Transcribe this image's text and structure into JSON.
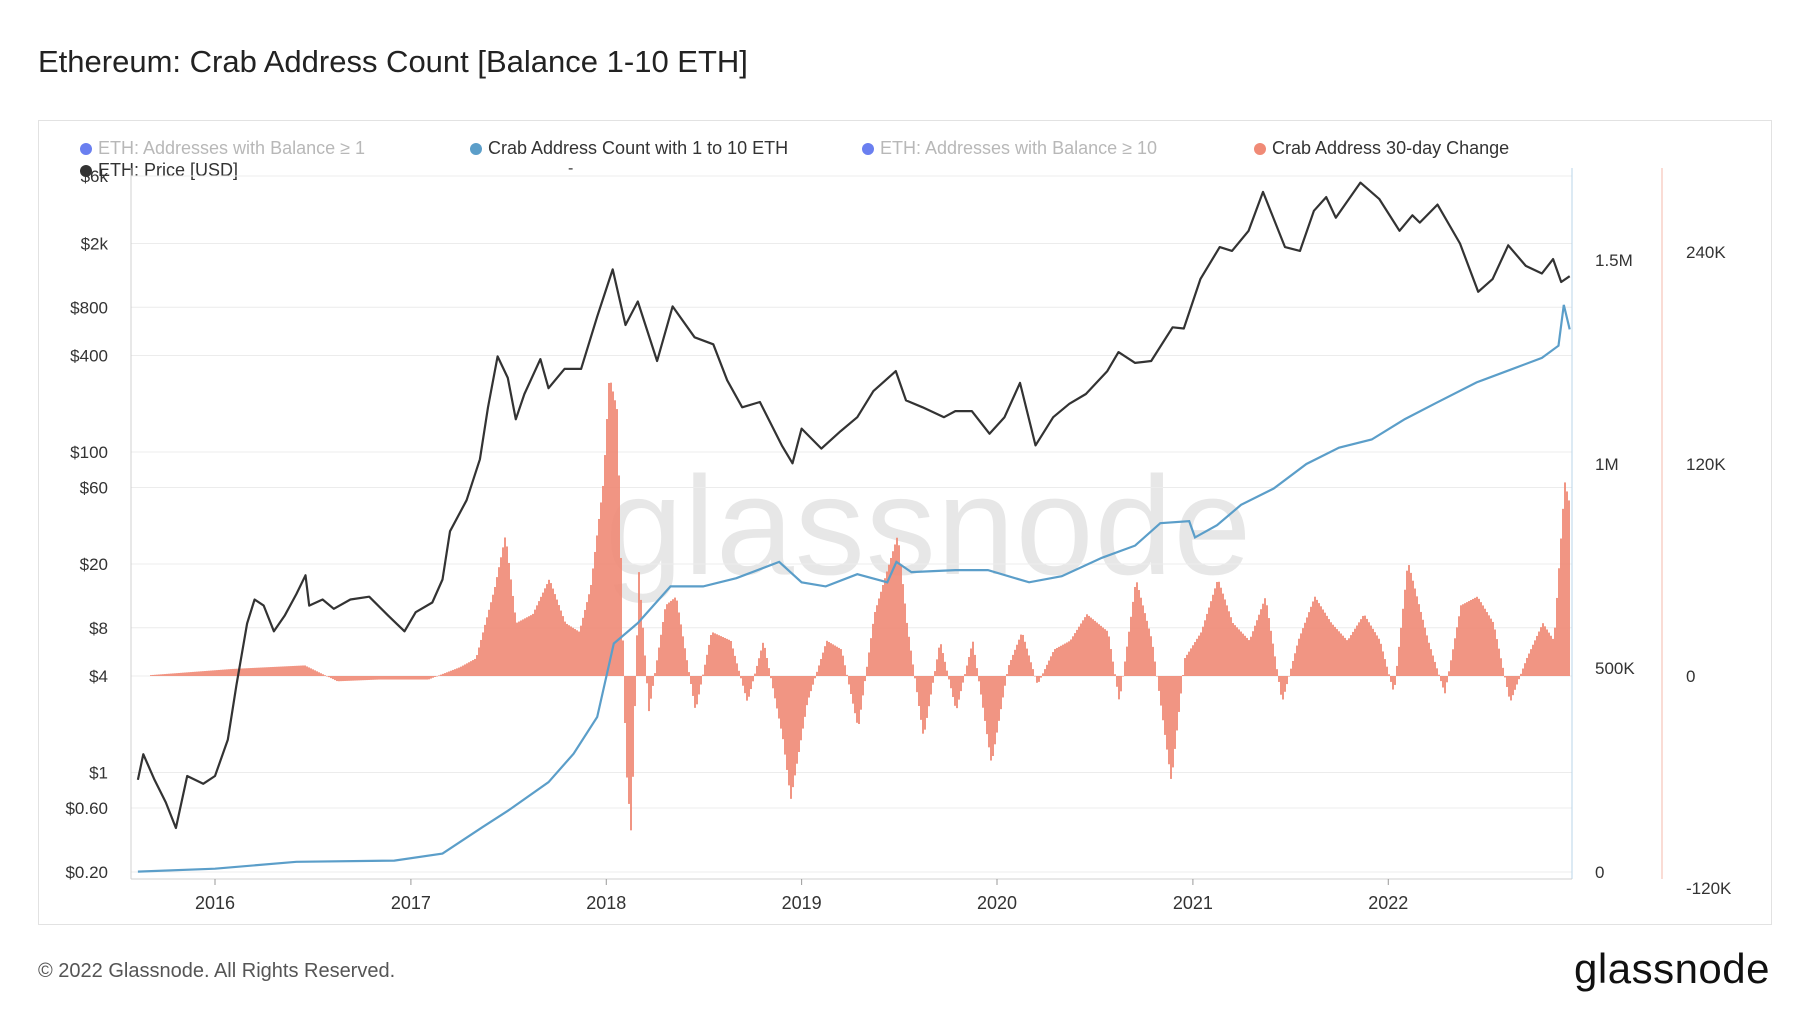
{
  "title": "Ethereum: Crab Address Count [Balance 1-10 ETH]",
  "legend": [
    {
      "label": "ETH: Addresses with Balance ≥ 1",
      "color": "#6a7ff0",
      "active": false
    },
    {
      "label": "Crab Address Count with 1 to 10 ETH",
      "color": "#5b9ec9",
      "active": true
    },
    {
      "label": "ETH: Addresses with Balance ≥ 10",
      "color": "#6a7ff0",
      "active": false
    },
    {
      "label": "Crab Address 30-day Change",
      "color": "#f08a76",
      "active": true
    },
    {
      "label": "ETH: Price [USD]",
      "color": "#333333",
      "active": true
    }
  ],
  "legend_dash": "-",
  "watermark": "glassnode",
  "footer": {
    "copyright": "© 2022 Glassnode. All Rights Reserved.",
    "brand": "glassnode"
  },
  "chart_data": {
    "type": "line",
    "x_ticks": [
      "2016",
      "2017",
      "2018",
      "2019",
      "2020",
      "2021",
      "2022"
    ],
    "price_axis_ticks": [
      "$6k",
      "$2k",
      "$800",
      "$400",
      "$100",
      "$60",
      "$20",
      "$8",
      "$4",
      "$1",
      "$0.60",
      "$0.20"
    ],
    "count_axis_ticks": [
      "1.5M",
      "1M",
      "500K",
      "0"
    ],
    "change_axis_ticks": [
      "240K",
      "120K",
      "0",
      "-120K"
    ],
    "price_scale": "log",
    "grid": true,
    "legend_position": "top",
    "series": [
      {
        "name": "ETH: Price [USD]",
        "axis": "left-log",
        "color": "#333333",
        "points": [
          [
            "2015-08-10",
            0.9
          ],
          [
            "2015-08-20",
            1.3
          ],
          [
            "2015-09-10",
            0.9
          ],
          [
            "2015-10-01",
            0.65
          ],
          [
            "2015-10-20",
            0.45
          ],
          [
            "2015-11-10",
            0.95
          ],
          [
            "2015-12-10",
            0.85
          ],
          [
            "2016-01-01",
            0.95
          ],
          [
            "2016-01-25",
            1.6
          ],
          [
            "2016-02-10",
            3.5
          ],
          [
            "2016-03-01",
            8.5
          ],
          [
            "2016-03-15",
            12
          ],
          [
            "2016-04-01",
            11
          ],
          [
            "2016-04-20",
            7.6
          ],
          [
            "2016-05-10",
            9.5
          ],
          [
            "2016-06-01",
            13
          ],
          [
            "2016-06-18",
            17
          ],
          [
            "2016-06-25",
            11
          ],
          [
            "2016-07-20",
            12
          ],
          [
            "2016-08-10",
            10.5
          ],
          [
            "2016-09-10",
            12
          ],
          [
            "2016-10-15",
            12.5
          ],
          [
            "2016-11-20",
            9.5
          ],
          [
            "2016-12-20",
            7.6
          ],
          [
            "2017-01-10",
            10
          ],
          [
            "2017-02-10",
            11.5
          ],
          [
            "2017-03-01",
            16
          ],
          [
            "2017-03-15",
            32
          ],
          [
            "2017-04-15",
            50
          ],
          [
            "2017-05-10",
            90
          ],
          [
            "2017-05-25",
            190
          ],
          [
            "2017-06-12",
            395
          ],
          [
            "2017-07-01",
            290
          ],
          [
            "2017-07-16",
            160
          ],
          [
            "2017-08-01",
            230
          ],
          [
            "2017-08-31",
            380
          ],
          [
            "2017-09-15",
            250
          ],
          [
            "2017-10-15",
            330
          ],
          [
            "2017-11-15",
            330
          ],
          [
            "2017-12-15",
            700
          ],
          [
            "2018-01-13",
            1380
          ],
          [
            "2018-02-06",
            620
          ],
          [
            "2018-03-01",
            870
          ],
          [
            "2018-04-06",
            370
          ],
          [
            "2018-05-05",
            810
          ],
          [
            "2018-06-15",
            520
          ],
          [
            "2018-07-20",
            470
          ],
          [
            "2018-08-15",
            280
          ],
          [
            "2018-09-12",
            190
          ],
          [
            "2018-10-15",
            205
          ],
          [
            "2018-11-25",
            110
          ],
          [
            "2018-12-15",
            85
          ],
          [
            "2019-01-01",
            140
          ],
          [
            "2019-02-07",
            105
          ],
          [
            "2019-03-15",
            135
          ],
          [
            "2019-04-15",
            165
          ],
          [
            "2019-05-15",
            240
          ],
          [
            "2019-06-26",
            320
          ],
          [
            "2019-07-15",
            210
          ],
          [
            "2019-08-15",
            190
          ],
          [
            "2019-09-24",
            165
          ],
          [
            "2019-10-15",
            180
          ],
          [
            "2019-11-15",
            180
          ],
          [
            "2019-12-18",
            130
          ],
          [
            "2020-01-15",
            165
          ],
          [
            "2020-02-13",
            270
          ],
          [
            "2020-03-13",
            110
          ],
          [
            "2020-04-15",
            165
          ],
          [
            "2020-05-15",
            200
          ],
          [
            "2020-06-15",
            230
          ],
          [
            "2020-07-25",
            320
          ],
          [
            "2020-08-15",
            420
          ],
          [
            "2020-09-15",
            360
          ],
          [
            "2020-10-15",
            370
          ],
          [
            "2020-11-24",
            600
          ],
          [
            "2020-12-15",
            590
          ],
          [
            "2021-01-15",
            1200
          ],
          [
            "2021-02-20",
            1900
          ],
          [
            "2021-03-15",
            1800
          ],
          [
            "2021-04-15",
            2400
          ],
          [
            "2021-05-12",
            4200
          ],
          [
            "2021-06-22",
            1900
          ],
          [
            "2021-07-20",
            1800
          ],
          [
            "2021-08-15",
            3200
          ],
          [
            "2021-09-07",
            3900
          ],
          [
            "2021-09-25",
            2900
          ],
          [
            "2021-11-10",
            4800
          ],
          [
            "2021-12-15",
            3800
          ],
          [
            "2022-01-22",
            2400
          ],
          [
            "2022-02-15",
            3000
          ],
          [
            "2022-03-01",
            2700
          ],
          [
            "2022-04-03",
            3500
          ],
          [
            "2022-05-15",
            2000
          ],
          [
            "2022-06-18",
            1000
          ],
          [
            "2022-07-15",
            1200
          ],
          [
            "2022-08-13",
            1950
          ],
          [
            "2022-09-15",
            1450
          ],
          [
            "2022-10-15",
            1300
          ],
          [
            "2022-11-05",
            1600
          ],
          [
            "2022-11-20",
            1150
          ],
          [
            "2022-12-06",
            1250
          ]
        ]
      },
      {
        "name": "Crab Address Count with 1 to 10 ETH",
        "axis": "right-linear",
        "color": "#5b9ec9",
        "points": [
          [
            "2015-08-10",
            1000
          ],
          [
            "2016-01-01",
            8000
          ],
          [
            "2016-06-01",
            25000
          ],
          [
            "2016-12-01",
            28000
          ],
          [
            "2017-03-01",
            45000
          ],
          [
            "2017-05-15",
            110000
          ],
          [
            "2017-07-01",
            150000
          ],
          [
            "2017-09-15",
            220000
          ],
          [
            "2017-11-01",
            290000
          ],
          [
            "2017-12-15",
            380000
          ],
          [
            "2018-01-15",
            560000
          ],
          [
            "2018-03-01",
            610000
          ],
          [
            "2018-05-01",
            700000
          ],
          [
            "2018-07-01",
            700000
          ],
          [
            "2018-09-01",
            720000
          ],
          [
            "2018-11-20",
            760000
          ],
          [
            "2019-01-01",
            710000
          ],
          [
            "2019-02-15",
            700000
          ],
          [
            "2019-04-15",
            730000
          ],
          [
            "2019-06-10",
            710000
          ],
          [
            "2019-06-27",
            760000
          ],
          [
            "2019-07-25",
            735000
          ],
          [
            "2019-10-15",
            740000
          ],
          [
            "2019-12-15",
            740000
          ],
          [
            "2020-03-01",
            710000
          ],
          [
            "2020-05-01",
            725000
          ],
          [
            "2020-07-15",
            770000
          ],
          [
            "2020-09-15",
            800000
          ],
          [
            "2020-11-01",
            855000
          ],
          [
            "2020-12-25",
            860000
          ],
          [
            "2021-01-05",
            820000
          ],
          [
            "2021-02-15",
            850000
          ],
          [
            "2021-04-01",
            900000
          ],
          [
            "2021-06-01",
            940000
          ],
          [
            "2021-08-01",
            1000000
          ],
          [
            "2021-10-01",
            1040000
          ],
          [
            "2021-12-01",
            1060000
          ],
          [
            "2022-02-01",
            1110000
          ],
          [
            "2022-04-01",
            1150000
          ],
          [
            "2022-06-15",
            1200000
          ],
          [
            "2022-08-15",
            1230000
          ],
          [
            "2022-10-15",
            1260000
          ],
          [
            "2022-11-15",
            1290000
          ],
          [
            "2022-11-25",
            1390000
          ],
          [
            "2022-12-06",
            1330000
          ]
        ]
      },
      {
        "name": "Crab Address 30-day Change",
        "axis": "right2-linear",
        "color": "#f08a76",
        "type": "bar",
        "points": [
          [
            "2015-09-01",
            500
          ],
          [
            "2016-02-01",
            4000
          ],
          [
            "2016-06-15",
            6000
          ],
          [
            "2016-08-15",
            -3000
          ],
          [
            "2016-11-01",
            -2000
          ],
          [
            "2017-02-01",
            -2000
          ],
          [
            "2017-04-01",
            5000
          ],
          [
            "2017-05-01",
            10000
          ],
          [
            "2017-06-05",
            50000
          ],
          [
            "2017-06-25",
            80000
          ],
          [
            "2017-07-15",
            30000
          ],
          [
            "2017-08-15",
            35000
          ],
          [
            "2017-09-15",
            55000
          ],
          [
            "2017-10-15",
            30000
          ],
          [
            "2017-11-10",
            25000
          ],
          [
            "2017-12-01",
            50000
          ],
          [
            "2017-12-25",
            110000
          ],
          [
            "2018-01-05",
            170000
          ],
          [
            "2018-01-20",
            150000
          ],
          [
            "2018-02-05",
            -50000
          ],
          [
            "2018-02-15",
            -90000
          ],
          [
            "2018-03-01",
            60000
          ],
          [
            "2018-03-20",
            -20000
          ],
          [
            "2018-04-20",
            40000
          ],
          [
            "2018-05-10",
            45000
          ],
          [
            "2018-06-15",
            -20000
          ],
          [
            "2018-07-15",
            25000
          ],
          [
            "2018-08-20",
            20000
          ],
          [
            "2018-09-20",
            -15000
          ],
          [
            "2018-10-20",
            20000
          ],
          [
            "2018-11-25",
            -35000
          ],
          [
            "2018-12-10",
            -70000
          ],
          [
            "2019-01-10",
            -15000
          ],
          [
            "2019-02-15",
            20000
          ],
          [
            "2019-03-15",
            15000
          ],
          [
            "2019-04-15",
            -30000
          ],
          [
            "2019-05-15",
            35000
          ],
          [
            "2019-06-28",
            80000
          ],
          [
            "2019-07-15",
            30000
          ],
          [
            "2019-08-15",
            -35000
          ],
          [
            "2019-09-15",
            20000
          ],
          [
            "2019-10-15",
            -20000
          ],
          [
            "2019-11-15",
            20000
          ],
          [
            "2019-12-20",
            -50000
          ],
          [
            "2020-01-20",
            5000
          ],
          [
            "2020-02-15",
            25000
          ],
          [
            "2020-03-15",
            -5000
          ],
          [
            "2020-04-15",
            15000
          ],
          [
            "2020-05-15",
            20000
          ],
          [
            "2020-06-15",
            35000
          ],
          [
            "2020-07-25",
            25000
          ],
          [
            "2020-08-15",
            -15000
          ],
          [
            "2020-09-15",
            55000
          ],
          [
            "2020-10-15",
            20000
          ],
          [
            "2020-11-20",
            -60000
          ],
          [
            "2020-12-15",
            10000
          ],
          [
            "2021-01-15",
            25000
          ],
          [
            "2021-02-15",
            55000
          ],
          [
            "2021-03-15",
            30000
          ],
          [
            "2021-04-15",
            20000
          ],
          [
            "2021-05-15",
            45000
          ],
          [
            "2021-06-15",
            -15000
          ],
          [
            "2021-07-15",
            20000
          ],
          [
            "2021-08-15",
            45000
          ],
          [
            "2021-09-15",
            30000
          ],
          [
            "2021-10-15",
            20000
          ],
          [
            "2021-11-15",
            35000
          ],
          [
            "2021-12-15",
            20000
          ],
          [
            "2022-01-10",
            -10000
          ],
          [
            "2022-02-05",
            65000
          ],
          [
            "2022-03-15",
            20000
          ],
          [
            "2022-04-15",
            -10000
          ],
          [
            "2022-05-15",
            40000
          ],
          [
            "2022-06-15",
            45000
          ],
          [
            "2022-07-15",
            30000
          ],
          [
            "2022-08-15",
            -15000
          ],
          [
            "2022-09-15",
            10000
          ],
          [
            "2022-10-15",
            30000
          ],
          [
            "2022-11-05",
            20000
          ],
          [
            "2022-11-25",
            110000
          ],
          [
            "2022-12-06",
            95000
          ]
        ]
      }
    ]
  }
}
